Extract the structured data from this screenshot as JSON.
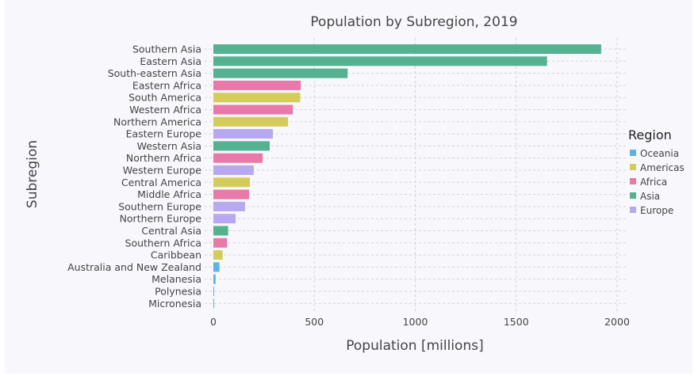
{
  "chart_data": {
    "type": "bar",
    "orientation": "horizontal",
    "title": "Population by Subregion, 2019",
    "xlabel": "Population [millions]",
    "ylabel": "Subregion",
    "xlim": [
      0,
      2100
    ],
    "xticks": [
      0,
      500,
      1000,
      1500,
      2000
    ],
    "grid": true,
    "legend": {
      "title": "Region",
      "placement": "right",
      "entries": [
        {
          "name": "Oceania",
          "color": "#5ab4e5"
        },
        {
          "name": "Americas",
          "color": "#d4cc5a"
        },
        {
          "name": "Africa",
          "color": "#e879a8"
        },
        {
          "name": "Asia",
          "color": "#55b18f"
        },
        {
          "name": "Europe",
          "color": "#b8a8f0"
        }
      ]
    },
    "categories": [
      "Southern Asia",
      "Eastern Asia",
      "South-eastern Asia",
      "Eastern Africa",
      "South America",
      "Western Africa",
      "Northern America",
      "Eastern Europe",
      "Western Asia",
      "Northern Africa",
      "Western Europe",
      "Central America",
      "Middle Africa",
      "Southern Europe",
      "Northern Europe",
      "Central Asia",
      "Southern Africa",
      "Caribbean",
      "Australia and New Zealand",
      "Melanesia",
      "Polynesia",
      "Micronesia"
    ],
    "values": [
      1921,
      1653,
      665,
      433,
      430,
      394,
      370,
      295,
      279,
      244,
      200,
      181,
      177,
      157,
      110,
      73,
      68,
      46,
      30,
      11,
      0.7,
      0.5
    ],
    "regions": [
      "Asia",
      "Asia",
      "Asia",
      "Africa",
      "Americas",
      "Africa",
      "Americas",
      "Europe",
      "Asia",
      "Africa",
      "Europe",
      "Americas",
      "Africa",
      "Europe",
      "Europe",
      "Asia",
      "Africa",
      "Americas",
      "Oceania",
      "Oceania",
      "Oceania",
      "Oceania"
    ]
  }
}
